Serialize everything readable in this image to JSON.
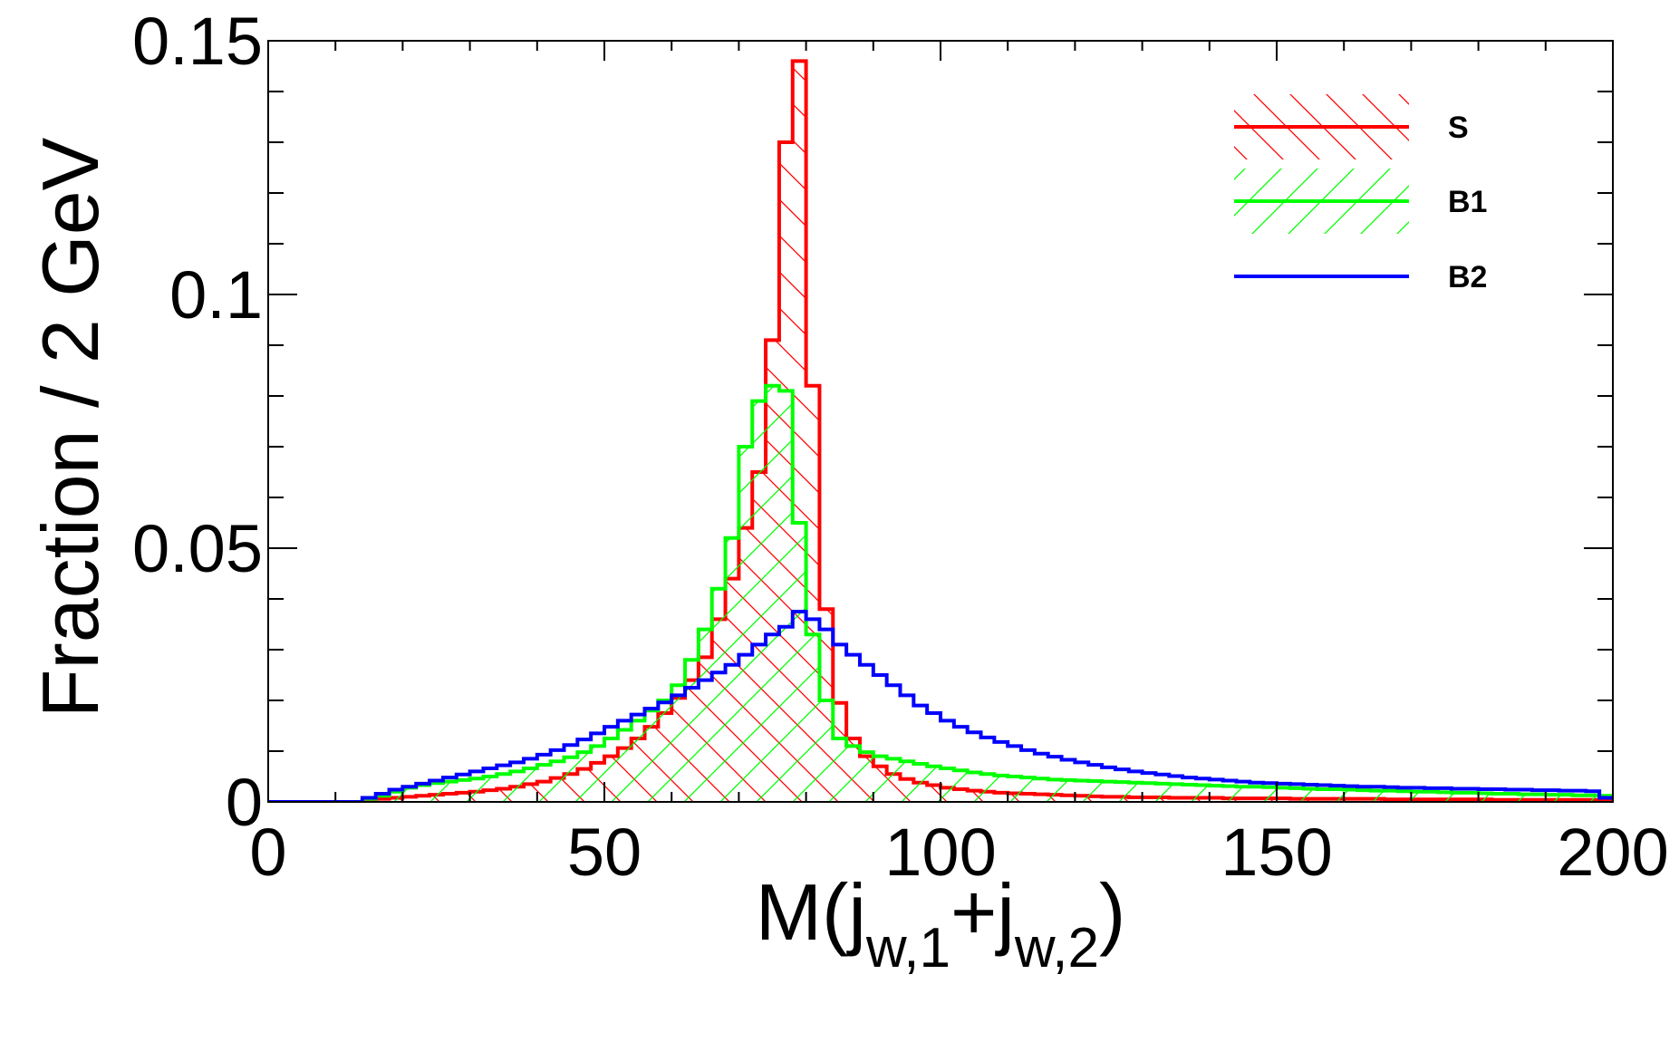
{
  "chart_data": {
    "type": "histogram",
    "title": "",
    "xlabel": "M(j_{w,1}+j_{w,2})",
    "xlabel_parts": {
      "main": "M(j",
      "sub1": "w,1",
      "mid": "+j",
      "sub2": "w,2",
      "end": ")"
    },
    "ylabel": "Fraction / 2 GeV",
    "xlim": [
      0,
      200
    ],
    "ylim": [
      0,
      0.15
    ],
    "bin_width": 2,
    "x_ticks": [
      {
        "value": 0,
        "label": "0"
      },
      {
        "value": 50,
        "label": "50"
      },
      {
        "value": 100,
        "label": "100"
      },
      {
        "value": 150,
        "label": "150"
      },
      {
        "value": 200,
        "label": "200"
      }
    ],
    "y_ticks": [
      {
        "value": 0,
        "label": "0"
      },
      {
        "value": 0.05,
        "label": "0.05"
      },
      {
        "value": 0.1,
        "label": "0.1"
      },
      {
        "value": 0.15,
        "label": "0.15"
      }
    ],
    "legend_position": "top-right",
    "series": [
      {
        "name": "S",
        "color": "#ff0000",
        "hatch": "backslash",
        "values": [
          0,
          0,
          0,
          0,
          0,
          0,
          0,
          0.0003,
          0.0006,
          0.0008,
          0.001,
          0.0012,
          0.0014,
          0.0016,
          0.0018,
          0.002,
          0.0023,
          0.0026,
          0.003,
          0.0035,
          0.004,
          0.0047,
          0.0055,
          0.0065,
          0.0077,
          0.009,
          0.0106,
          0.0125,
          0.0148,
          0.0175,
          0.0205,
          0.024,
          0.0285,
          0.036,
          0.044,
          0.054,
          0.065,
          0.091,
          0.13,
          0.146,
          0.082,
          0.038,
          0.0195,
          0.0125,
          0.009,
          0.007,
          0.0055,
          0.0045,
          0.0038,
          0.0033,
          0.0028,
          0.0025,
          0.0022,
          0.002,
          0.0018,
          0.0017,
          0.0016,
          0.0015,
          0.0014,
          0.0013,
          0.0012,
          0.0011,
          0.001,
          0.001,
          0.0009,
          0.0009,
          0.0009,
          0.0008,
          0.0008,
          0.0008,
          0.0008,
          0.0007,
          0.0007,
          0.0007,
          0.0007,
          0.0007,
          0.0006,
          0.0006,
          0.0006,
          0.0006,
          0.0006,
          0.0006,
          0.0006,
          0.0005,
          0.0005,
          0.0005,
          0.0005,
          0.0005,
          0.0005,
          0.0005,
          0.0005,
          0.0004,
          0.0004,
          0.0004,
          0.0004,
          0.0004,
          0.0004,
          0.0004,
          0.0004,
          0.0004
        ]
      },
      {
        "name": "B1",
        "color": "#00ff00",
        "hatch": "slash",
        "values": [
          0,
          0,
          0,
          0,
          0,
          0,
          0,
          0.0006,
          0.0012,
          0.002,
          0.0028,
          0.0033,
          0.0037,
          0.004,
          0.0043,
          0.0046,
          0.005,
          0.0055,
          0.006,
          0.0066,
          0.0073,
          0.008,
          0.0088,
          0.0098,
          0.011,
          0.0125,
          0.0142,
          0.016,
          0.018,
          0.02,
          0.023,
          0.028,
          0.034,
          0.042,
          0.052,
          0.07,
          0.079,
          0.082,
          0.081,
          0.055,
          0.033,
          0.02,
          0.0125,
          0.011,
          0.0098,
          0.009,
          0.0085,
          0.008,
          0.0075,
          0.007,
          0.0066,
          0.0062,
          0.0058,
          0.0055,
          0.0052,
          0.005,
          0.0048,
          0.0046,
          0.0044,
          0.0043,
          0.0042,
          0.0041,
          0.004,
          0.0039,
          0.0038,
          0.0037,
          0.0036,
          0.0035,
          0.0034,
          0.0033,
          0.0032,
          0.0031,
          0.003,
          0.003,
          0.0029,
          0.0028,
          0.0027,
          0.0026,
          0.0025,
          0.0025,
          0.0024,
          0.0023,
          0.0022,
          0.0022,
          0.0021,
          0.002,
          0.002,
          0.0019,
          0.0018,
          0.0018,
          0.0017,
          0.0016,
          0.0016,
          0.0015,
          0.0015,
          0.0014,
          0.0014,
          0.0013,
          0.0013,
          0.0012
        ]
      },
      {
        "name": "B2",
        "color": "#0000ff",
        "hatch": "none",
        "values": [
          0,
          0,
          0,
          0,
          0,
          0,
          0,
          0.0008,
          0.0016,
          0.0024,
          0.003,
          0.0036,
          0.0042,
          0.0048,
          0.0054,
          0.006,
          0.0066,
          0.0072,
          0.0078,
          0.0085,
          0.0093,
          0.0102,
          0.0112,
          0.0123,
          0.0135,
          0.0148,
          0.016,
          0.0172,
          0.0184,
          0.0196,
          0.021,
          0.0225,
          0.024,
          0.0255,
          0.027,
          0.029,
          0.031,
          0.033,
          0.0345,
          0.0375,
          0.036,
          0.034,
          0.031,
          0.029,
          0.027,
          0.025,
          0.023,
          0.021,
          0.019,
          0.0175,
          0.016,
          0.0148,
          0.0137,
          0.0127,
          0.0118,
          0.011,
          0.0102,
          0.0095,
          0.0089,
          0.0083,
          0.0078,
          0.0073,
          0.0068,
          0.0064,
          0.006,
          0.0057,
          0.0054,
          0.0051,
          0.0048,
          0.0046,
          0.0044,
          0.0042,
          0.004,
          0.0038,
          0.0037,
          0.0036,
          0.0035,
          0.0034,
          0.0033,
          0.0032,
          0.0031,
          0.003,
          0.003,
          0.0029,
          0.0028,
          0.0028,
          0.0027,
          0.0027,
          0.0026,
          0.0026,
          0.0025,
          0.0025,
          0.0024,
          0.0024,
          0.0023,
          0.0023,
          0.0022,
          0.0022,
          0.0021,
          0.0008
        ]
      }
    ]
  }
}
